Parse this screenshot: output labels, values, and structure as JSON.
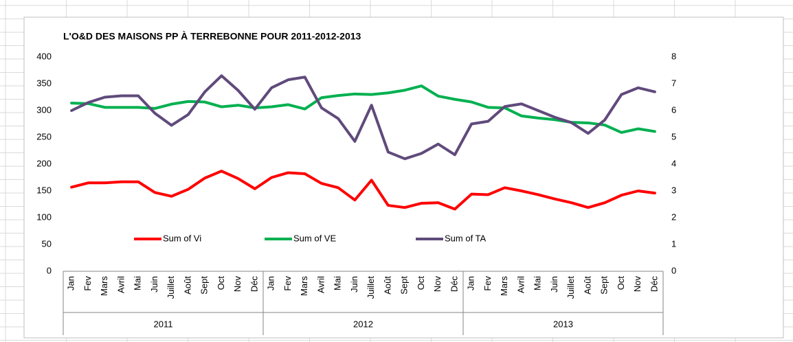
{
  "chart_data": {
    "type": "line",
    "title": "L'O&D DES MAISONS PP À TERREBONNE POUR 2011-2012-2013",
    "categories": [
      "Jan",
      "Fev",
      "Mars",
      "Avril",
      "Mai",
      "Juin",
      "Juillet",
      "Août",
      "Sept",
      "Oct",
      "Nov",
      "Déc",
      "Jan",
      "Fev",
      "Mars",
      "Avril",
      "Mai",
      "Juin",
      "Juillet",
      "Août",
      "Sept",
      "Oct",
      "Nov",
      "Déc",
      "Jan",
      "Fev",
      "Mars",
      "Avril",
      "Mai",
      "Juin",
      "Juillet",
      "Août",
      "Sept",
      "Oct",
      "Nov",
      "Déc"
    ],
    "category_groups": [
      "2011",
      "2012",
      "2013"
    ],
    "series": [
      {
        "name": "Sum of Vi",
        "color": "#ff0000",
        "axis": "y",
        "values": [
          157,
          165,
          165,
          167,
          167,
          147,
          140,
          153,
          174,
          187,
          173,
          154,
          175,
          184,
          182,
          164,
          156,
          133,
          170,
          123,
          119,
          127,
          128,
          116,
          144,
          143,
          156,
          150,
          143,
          135,
          128,
          119,
          128,
          142,
          150,
          146
        ]
      },
      {
        "name": "Sum of VE",
        "color": "#00b050",
        "axis": "y",
        "values": [
          314,
          313,
          306,
          306,
          306,
          304,
          312,
          317,
          316,
          307,
          310,
          305,
          307,
          311,
          303,
          324,
          328,
          331,
          330,
          333,
          338,
          346,
          327,
          321,
          316,
          306,
          305,
          290,
          286,
          283,
          278,
          277,
          273,
          259,
          266,
          261
        ]
      },
      {
        "name": "Sum of TA",
        "color": "#604a7b",
        "axis": "y2",
        "values": [
          6.0,
          6.3,
          6.5,
          6.55,
          6.55,
          5.9,
          5.45,
          5.85,
          6.7,
          7.3,
          6.75,
          6.05,
          6.85,
          7.15,
          7.25,
          6.1,
          5.7,
          4.85,
          6.2,
          4.45,
          4.2,
          4.4,
          4.75,
          4.35,
          5.5,
          5.6,
          6.15,
          6.25,
          6.0,
          5.75,
          5.55,
          5.15,
          5.65,
          6.6,
          6.85,
          6.7
        ]
      }
    ],
    "ylim": [
      0,
      400
    ],
    "yticks": [
      0,
      50,
      100,
      150,
      200,
      250,
      300,
      350,
      400
    ],
    "y2lim": [
      0,
      8
    ],
    "y2ticks": [
      0,
      1,
      2,
      3,
      4,
      5,
      6,
      7,
      8
    ],
    "grid": false
  }
}
